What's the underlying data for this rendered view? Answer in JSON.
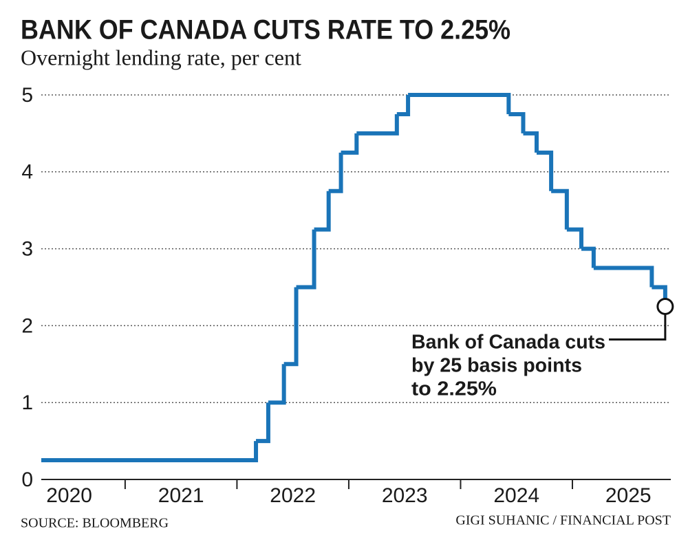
{
  "chart_data": {
    "type": "step",
    "title": "BANK OF CANADA CUTS RATE TO 2.25%",
    "subtitle": "Overnight lending rate, per cent",
    "source": "SOURCE: BLOOMBERG",
    "credit": "GIGI SUHANIC / FINANCIAL POST",
    "annotation": [
      "Bank of Canada cuts",
      "by 25 basis points",
      "to 2.25%"
    ],
    "color": "#1a74b8",
    "x": [
      2020.25,
      2022.17,
      2022.28,
      2022.42,
      2022.53,
      2022.69,
      2022.82,
      2022.93,
      2023.07,
      2023.43,
      2023.53,
      2024.43,
      2024.56,
      2024.68,
      2024.81,
      2024.95,
      2025.08,
      2025.19,
      2025.71,
      2025.83
    ],
    "values": [
      0.25,
      0.5,
      1,
      1.5,
      2.5,
      3.25,
      3.75,
      4.25,
      4.5,
      4.75,
      5,
      4.75,
      4.5,
      4.25,
      3.75,
      3.25,
      3,
      2.75,
      2.5,
      2.25
    ],
    "xlim": [
      2020.25,
      2025.88
    ],
    "xticks": [
      {
        "value": 2020.5,
        "label": "2020"
      },
      {
        "value": 2021.5,
        "label": "2021"
      },
      {
        "value": 2022.5,
        "label": "2022"
      },
      {
        "value": 2023.5,
        "label": "2023"
      },
      {
        "value": 2024.5,
        "label": "2024"
      },
      {
        "value": 2025.5,
        "label": "2025"
      }
    ],
    "ylim": [
      0,
      5
    ],
    "yticks": [
      0,
      1,
      2,
      3,
      4,
      5
    ],
    "grid": true
  }
}
